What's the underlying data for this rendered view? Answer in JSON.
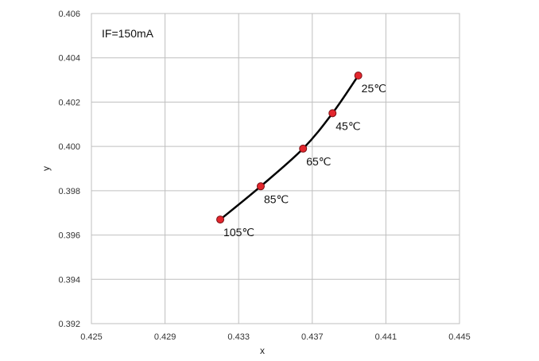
{
  "chart_data": {
    "type": "scatter",
    "title": "",
    "annotation": "IF=150mA",
    "xlabel": "x",
    "ylabel": "y",
    "xlim": [
      0.425,
      0.445
    ],
    "ylim": [
      0.392,
      0.406
    ],
    "x_ticks": [
      "0.425",
      "0.429",
      "0.433",
      "0.437",
      "0.441",
      "0.445"
    ],
    "y_ticks": [
      "0.392",
      "0.394",
      "0.396",
      "0.398",
      "0.400",
      "0.402",
      "0.404",
      "0.406"
    ],
    "grid": true,
    "line_color": "#000000",
    "marker_color": "#e3262d",
    "series": [
      {
        "points": [
          {
            "x": 0.432,
            "y": 0.3967,
            "label": "105℃"
          },
          {
            "x": 0.4342,
            "y": 0.3982,
            "label": "85℃"
          },
          {
            "x": 0.4365,
            "y": 0.3999,
            "label": "65℃"
          },
          {
            "x": 0.4381,
            "y": 0.4015,
            "label": "45℃"
          },
          {
            "x": 0.4395,
            "y": 0.4032,
            "label": "25℃"
          }
        ]
      }
    ]
  }
}
